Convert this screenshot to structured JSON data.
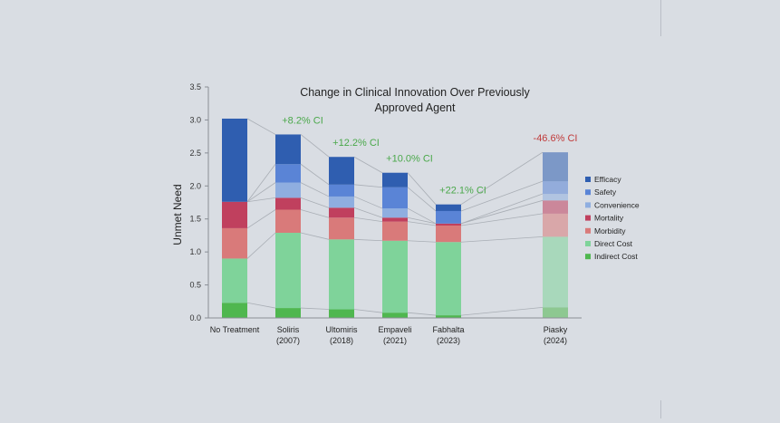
{
  "chart_data": {
    "type": "bar",
    "stacked": true,
    "title": [
      "Change in Clinical Innovation Over Previously",
      "Approved Agent"
    ],
    "ylabel": "Unmet Need",
    "xlabel": "",
    "ylim": [
      0,
      3.5
    ],
    "yticks": [
      "0.0",
      "0.5",
      "1.0",
      "1.5",
      "2.0",
      "2.5",
      "3.0",
      "3.5"
    ],
    "grid": false,
    "legend_position": "right",
    "categories": [
      {
        "line1": "No Treatment",
        "line2": ""
      },
      {
        "line1": "Soliris",
        "line2": "(2007)"
      },
      {
        "line1": "Ultomiris",
        "line2": "(2018)"
      },
      {
        "line1": "Empaveli",
        "line2": "(2021)"
      },
      {
        "line1": "Fabhalta",
        "line2": "(2023)"
      },
      {
        "line1": "Piasky",
        "line2": "(2024)"
      }
    ],
    "series": [
      {
        "name": "Indirect Cost",
        "color": "#4fb74f",
        "values": [
          0.23,
          0.15,
          0.13,
          0.08,
          0.04,
          0.16
        ]
      },
      {
        "name": "Direct Cost",
        "color": "#7fd39a",
        "values": [
          0.67,
          1.14,
          1.06,
          1.09,
          1.11,
          1.07
        ]
      },
      {
        "name": "Morbidity",
        "color": "#d97a7a",
        "values": [
          0.46,
          0.35,
          0.33,
          0.29,
          0.25,
          0.35
        ]
      },
      {
        "name": "Mortality",
        "color": "#c0405e",
        "values": [
          0.4,
          0.18,
          0.15,
          0.06,
          0.03,
          0.2
        ]
      },
      {
        "name": "Convenience",
        "color": "#8faee0",
        "values": [
          0.0,
          0.23,
          0.17,
          0.14,
          0.0,
          0.1
        ]
      },
      {
        "name": "Safety",
        "color": "#5a84d6",
        "values": [
          0.0,
          0.28,
          0.18,
          0.32,
          0.19,
          0.19
        ]
      },
      {
        "name": "Efficacy",
        "color": "#2f5eb0",
        "values": [
          1.26,
          0.45,
          0.42,
          0.22,
          0.1,
          0.44
        ]
      }
    ],
    "annotations": [
      {
        "category": 1,
        "text": "+8.2% CI",
        "color": "#4aa84a"
      },
      {
        "category": 2,
        "text": "+12.2% CI",
        "color": "#4aa84a"
      },
      {
        "category": 3,
        "text": "+10.0% CI",
        "color": "#4aa84a"
      },
      {
        "category": 4,
        "text": "+22.1% CI",
        "color": "#4aa84a"
      },
      {
        "category": 5,
        "text": "-46.6% CI",
        "color": "#c03a3a"
      }
    ],
    "faded_categories": [
      5
    ]
  }
}
